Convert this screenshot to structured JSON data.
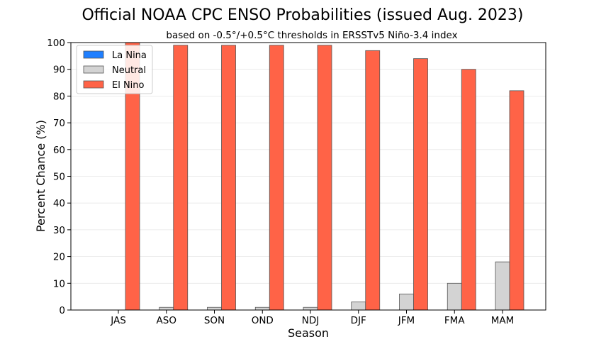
{
  "chart_data": {
    "type": "bar",
    "title": "Official NOAA CPC ENSO Probabilities (issued Aug. 2023)",
    "subtitle": "based on -0.5°/+0.5°C thresholds in ERSSTv5 Niño-3.4 index",
    "xlabel": "Season",
    "ylabel": "Percent Chance (%)",
    "ylim": [
      0,
      100
    ],
    "yticks": [
      0,
      10,
      20,
      30,
      40,
      50,
      60,
      70,
      80,
      90,
      100
    ],
    "grid": "horizontal",
    "legend_position": "top-left",
    "categories": [
      "JAS",
      "ASO",
      "SON",
      "OND",
      "NDJ",
      "DJF",
      "JFM",
      "FMA",
      "MAM"
    ],
    "series": [
      {
        "name": "La Nina",
        "color": "#1f7fff",
        "values": [
          0,
          0,
          0,
          0,
          0,
          0,
          0,
          0,
          0
        ]
      },
      {
        "name": "Neutral",
        "color": "#d3d3d3",
        "values": [
          0,
          1,
          1,
          1,
          1,
          3,
          6,
          10,
          18
        ]
      },
      {
        "name": "El Nino",
        "color": "#ff6347",
        "values": [
          100,
          99,
          99,
          99,
          99,
          97,
          94,
          90,
          82
        ]
      }
    ]
  }
}
